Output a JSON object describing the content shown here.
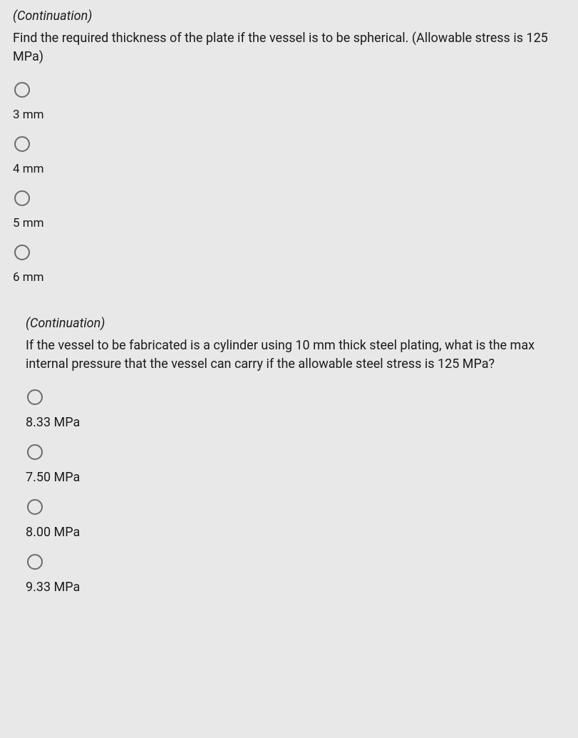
{
  "question1": {
    "continuation": "(Continuation)",
    "prompt": "Find the required thickness of the plate if the vessel is to be spherical. (Allowable stress is 125 MPa)",
    "options": [
      {
        "label": "3 mm"
      },
      {
        "label": "4 mm"
      },
      {
        "label": "5 mm"
      },
      {
        "label": "6 mm"
      }
    ]
  },
  "question2": {
    "continuation": "(Continuation)",
    "prompt": "If the vessel to be fabricated is a cylinder using 10 mm thick steel plating, what is the max internal pressure that the vessel can carry if the allowable steel stress is 125 MPa?",
    "options": [
      {
        "label": "8.33 MPa"
      },
      {
        "label": "7.50 MPa"
      },
      {
        "label": "8.00 MPa"
      },
      {
        "label": "9.33 MPa"
      }
    ]
  }
}
